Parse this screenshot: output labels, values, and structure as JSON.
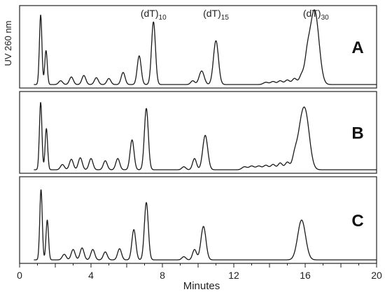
{
  "chart_data": {
    "type": "line",
    "xlabel": "Minutes",
    "ylabel": "UV 260 nm",
    "xlim": [
      0,
      20
    ],
    "x_ticks": [
      "0",
      "4",
      "8",
      "12",
      "16",
      "20"
    ],
    "grid": false,
    "panels": [
      {
        "label": "A",
        "annotations": [
          {
            "text": "(dT)",
            "sub": "10",
            "x": 7.5
          },
          {
            "text": "(dT)",
            "sub": "15",
            "x": 11.0
          },
          {
            "text": "(dT)",
            "sub": "30",
            "x": 16.6
          }
        ],
        "peaks": [
          {
            "x": 1.18,
            "h": 0.92
          },
          {
            "x": 1.48,
            "h": 0.45
          },
          {
            "x": 2.3,
            "h": 0.05
          },
          {
            "x": 2.9,
            "h": 0.1
          },
          {
            "x": 3.6,
            "h": 0.12
          },
          {
            "x": 4.3,
            "h": 0.09
          },
          {
            "x": 5.0,
            "h": 0.08
          },
          {
            "x": 5.8,
            "h": 0.16
          },
          {
            "x": 6.7,
            "h": 0.38
          },
          {
            "x": 7.5,
            "h": 0.83
          },
          {
            "x": 9.7,
            "h": 0.05
          },
          {
            "x": 10.2,
            "h": 0.18
          },
          {
            "x": 11.0,
            "h": 0.58
          },
          {
            "x": 13.8,
            "h": 0.03
          },
          {
            "x": 14.2,
            "h": 0.04
          },
          {
            "x": 14.6,
            "h": 0.05
          },
          {
            "x": 15.0,
            "h": 0.06
          },
          {
            "x": 15.4,
            "h": 0.08
          },
          {
            "x": 15.8,
            "h": 0.12
          },
          {
            "x": 16.1,
            "h": 0.22
          },
          {
            "x": 16.35,
            "h": 0.45
          },
          {
            "x": 16.6,
            "h": 0.7
          }
        ]
      },
      {
        "label": "B",
        "annotations": [],
        "peaks": [
          {
            "x": 1.18,
            "h": 0.9
          },
          {
            "x": 1.5,
            "h": 0.55
          },
          {
            "x": 2.4,
            "h": 0.07
          },
          {
            "x": 2.9,
            "h": 0.14
          },
          {
            "x": 3.4,
            "h": 0.16
          },
          {
            "x": 4.0,
            "h": 0.15
          },
          {
            "x": 4.8,
            "h": 0.12
          },
          {
            "x": 5.5,
            "h": 0.15
          },
          {
            "x": 6.3,
            "h": 0.4
          },
          {
            "x": 7.1,
            "h": 0.82
          },
          {
            "x": 9.2,
            "h": 0.04
          },
          {
            "x": 9.8,
            "h": 0.15
          },
          {
            "x": 10.4,
            "h": 0.46
          },
          {
            "x": 12.6,
            "h": 0.04
          },
          {
            "x": 13.0,
            "h": 0.05
          },
          {
            "x": 13.4,
            "h": 0.05
          },
          {
            "x": 13.8,
            "h": 0.06
          },
          {
            "x": 14.2,
            "h": 0.07
          },
          {
            "x": 14.6,
            "h": 0.09
          },
          {
            "x": 15.0,
            "h": 0.1
          },
          {
            "x": 15.4,
            "h": 0.14
          },
          {
            "x": 15.75,
            "h": 0.45
          },
          {
            "x": 16.05,
            "h": 0.6
          }
        ]
      },
      {
        "label": "C",
        "annotations": [],
        "peaks": [
          {
            "x": 1.2,
            "h": 0.88
          },
          {
            "x": 1.55,
            "h": 0.5
          },
          {
            "x": 2.5,
            "h": 0.07
          },
          {
            "x": 3.0,
            "h": 0.13
          },
          {
            "x": 3.5,
            "h": 0.15
          },
          {
            "x": 4.1,
            "h": 0.13
          },
          {
            "x": 4.8,
            "h": 0.1
          },
          {
            "x": 5.6,
            "h": 0.14
          },
          {
            "x": 6.4,
            "h": 0.38
          },
          {
            "x": 7.1,
            "h": 0.72
          },
          {
            "x": 9.2,
            "h": 0.04
          },
          {
            "x": 9.8,
            "h": 0.13
          },
          {
            "x": 10.3,
            "h": 0.42
          },
          {
            "x": 15.8,
            "h": 0.5
          }
        ]
      }
    ]
  }
}
